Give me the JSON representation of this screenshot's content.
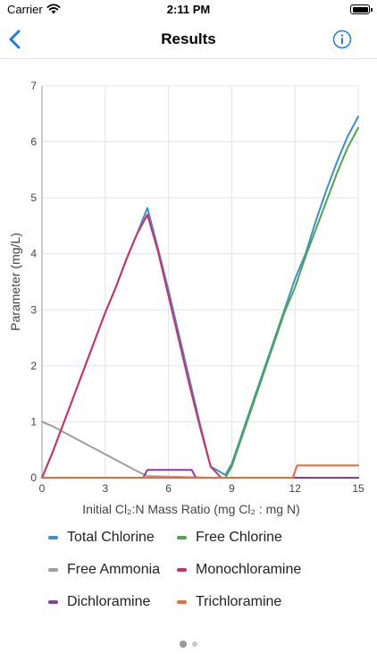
{
  "status_bar": {
    "carrier": "Carrier",
    "time": "2:11 PM"
  },
  "nav": {
    "title": "Results",
    "back_icon": "chevron-left-icon",
    "info_icon": "info-circle-icon",
    "accent": "#1a7cf4"
  },
  "chart_data": {
    "type": "line",
    "xlabel_html": "Initial Cl₂:N Mass Ratio (mg Cl₂ : mg N)",
    "xlabel": "Initial Cl₂:N Mass Ratio (mg Cl₂ : mg N)",
    "ylabel": "Parameter (mg/L)",
    "xlim": [
      0,
      15
    ],
    "ylim": [
      0,
      7
    ],
    "x_ticks": [
      0,
      3,
      6,
      9,
      12,
      15
    ],
    "y_ticks": [
      0,
      1,
      2,
      3,
      4,
      5,
      6,
      7
    ],
    "grid": true,
    "legend_position": "bottom",
    "series": [
      {
        "name": "Total Chlorine",
        "color": "#3b8fd3",
        "points": [
          [
            0,
            0
          ],
          [
            0.5,
            0.45
          ],
          [
            1,
            0.95
          ],
          [
            1.5,
            1.45
          ],
          [
            2,
            1.95
          ],
          [
            2.5,
            2.45
          ],
          [
            3,
            2.95
          ],
          [
            3.5,
            3.4
          ],
          [
            4,
            3.9
          ],
          [
            4.5,
            4.35
          ],
          [
            5,
            4.82
          ],
          [
            5.5,
            4.1
          ],
          [
            6,
            3.35
          ],
          [
            6.5,
            2.55
          ],
          [
            7,
            1.75
          ],
          [
            7.5,
            0.95
          ],
          [
            8,
            0.2
          ],
          [
            8.7,
            0.05
          ],
          [
            9,
            0.25
          ],
          [
            9.5,
            0.8
          ],
          [
            10,
            1.35
          ],
          [
            10.5,
            1.9
          ],
          [
            11,
            2.45
          ],
          [
            11.5,
            3.0
          ],
          [
            12,
            3.55
          ],
          [
            12.5,
            4.0
          ],
          [
            13,
            4.6
          ],
          [
            13.5,
            5.15
          ],
          [
            14,
            5.65
          ],
          [
            14.5,
            6.1
          ],
          [
            15,
            6.45
          ]
        ]
      },
      {
        "name": "Free Chlorine",
        "color": "#4ea64a",
        "points": [
          [
            0,
            0
          ],
          [
            8.7,
            0
          ],
          [
            9,
            0.2
          ],
          [
            9.5,
            0.75
          ],
          [
            10,
            1.3
          ],
          [
            10.5,
            1.85
          ],
          [
            11,
            2.4
          ],
          [
            11.5,
            2.95
          ],
          [
            12,
            3.4
          ],
          [
            12.5,
            3.95
          ],
          [
            13,
            4.45
          ],
          [
            13.5,
            4.95
          ],
          [
            14,
            5.45
          ],
          [
            14.5,
            5.9
          ],
          [
            15,
            6.25
          ]
        ]
      },
      {
        "name": "Free Ammonia",
        "color": "#9e9e9e",
        "points": [
          [
            0,
            1.0
          ],
          [
            0.5,
            0.92
          ],
          [
            1,
            0.82
          ],
          [
            1.5,
            0.72
          ],
          [
            2,
            0.62
          ],
          [
            2.5,
            0.52
          ],
          [
            3,
            0.42
          ],
          [
            3.5,
            0.32
          ],
          [
            4,
            0.22
          ],
          [
            4.5,
            0.12
          ],
          [
            5,
            0.03
          ],
          [
            6,
            0.02
          ],
          [
            7,
            0.01
          ],
          [
            8,
            0
          ],
          [
            15,
            0
          ]
        ]
      },
      {
        "name": "Monochloramine",
        "color": "#d62a63",
        "points": [
          [
            0,
            0
          ],
          [
            0.5,
            0.45
          ],
          [
            1,
            0.95
          ],
          [
            1.5,
            1.45
          ],
          [
            2,
            1.95
          ],
          [
            2.5,
            2.45
          ],
          [
            3,
            2.95
          ],
          [
            3.5,
            3.4
          ],
          [
            4,
            3.9
          ],
          [
            4.5,
            4.35
          ],
          [
            5,
            4.7
          ],
          [
            5.5,
            4.05
          ],
          [
            6,
            3.25
          ],
          [
            6.5,
            2.45
          ],
          [
            7,
            1.65
          ],
          [
            7.5,
            0.9
          ],
          [
            8,
            0.2
          ],
          [
            8.5,
            0
          ],
          [
            15,
            0
          ]
        ]
      },
      {
        "name": "Dichloramine",
        "color": "#8e3aa5",
        "points": [
          [
            0,
            0
          ],
          [
            4.8,
            0
          ],
          [
            5,
            0.14
          ],
          [
            7.1,
            0.14
          ],
          [
            7.3,
            0
          ],
          [
            15,
            0
          ]
        ]
      },
      {
        "name": "Trichloramine",
        "color": "#ef6a32",
        "points": [
          [
            0,
            0
          ],
          [
            11.9,
            0
          ],
          [
            12.1,
            0.22
          ],
          [
            15,
            0.22
          ]
        ]
      }
    ]
  },
  "legend": [
    {
      "label": "Total Chlorine",
      "color": "#3b8fd3"
    },
    {
      "label": "Free Chlorine",
      "color": "#4ea64a"
    },
    {
      "label": "Free Ammonia",
      "color": "#9e9e9e"
    },
    {
      "label": "Monochloramine",
      "color": "#d62a63"
    },
    {
      "label": "Dichloramine",
      "color": "#8e3aa5"
    },
    {
      "label": "Trichloramine",
      "color": "#ef6a32"
    }
  ],
  "page_indicator": {
    "count": 2,
    "active": 0
  }
}
